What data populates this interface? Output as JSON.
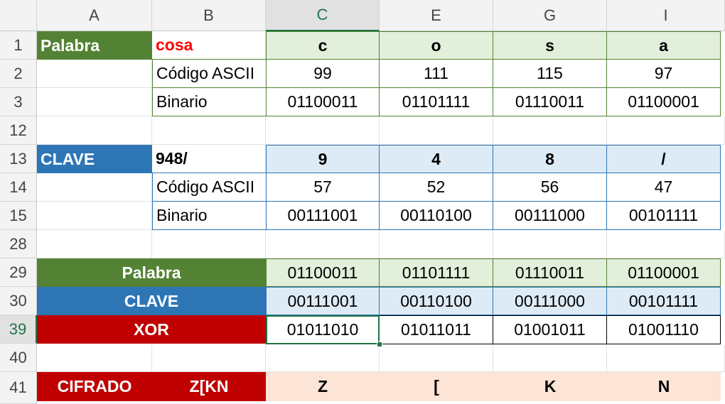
{
  "columns": [
    "A",
    "B",
    "C",
    "E",
    "G",
    "I"
  ],
  "rows": [
    "1",
    "2",
    "3",
    "12",
    "13",
    "14",
    "15",
    "28",
    "29",
    "30",
    "39",
    "40",
    "41"
  ],
  "palabra_block": {
    "label": "Palabra",
    "word": "cosa",
    "letters": [
      "c",
      "o",
      "s",
      "a"
    ],
    "ascii_label": "Código ASCII",
    "ascii": [
      "99",
      "111",
      "115",
      "97"
    ],
    "binary_label": "Binario",
    "binary": [
      "01100011",
      "01101111",
      "01110011",
      "01100001"
    ]
  },
  "clave_block": {
    "label": "CLAVE",
    "word": "948/",
    "letters": [
      "9",
      "4",
      "8",
      "/"
    ],
    "ascii_label": "Código ASCII",
    "ascii": [
      "57",
      "52",
      "56",
      "47"
    ],
    "binary_label": "Binario",
    "binary": [
      "00111001",
      "00110100",
      "00111000",
      "00101111"
    ]
  },
  "xor_block": {
    "palabra_label": "Palabra",
    "palabra_binary": [
      "01100011",
      "01101111",
      "01110011",
      "01100001"
    ],
    "clave_label": "CLAVE",
    "clave_binary": [
      "00111001",
      "00110100",
      "00111000",
      "00101111"
    ],
    "xor_label": "XOR",
    "xor_binary": [
      "01011010",
      "01011011",
      "01001011",
      "01001110"
    ]
  },
  "cifrado_block": {
    "label": "CIFRADO",
    "word": "Z[KN",
    "letters": [
      "Z",
      "[",
      "K",
      "N"
    ]
  },
  "selected_cell": "C39",
  "colors": {
    "green": "#548235",
    "blue": "#2e75b6",
    "red": "#c00000",
    "green_light": "#e2efda",
    "blue_light": "#ddebf7",
    "peach": "#fce4d6",
    "excel_accent": "#217346"
  }
}
